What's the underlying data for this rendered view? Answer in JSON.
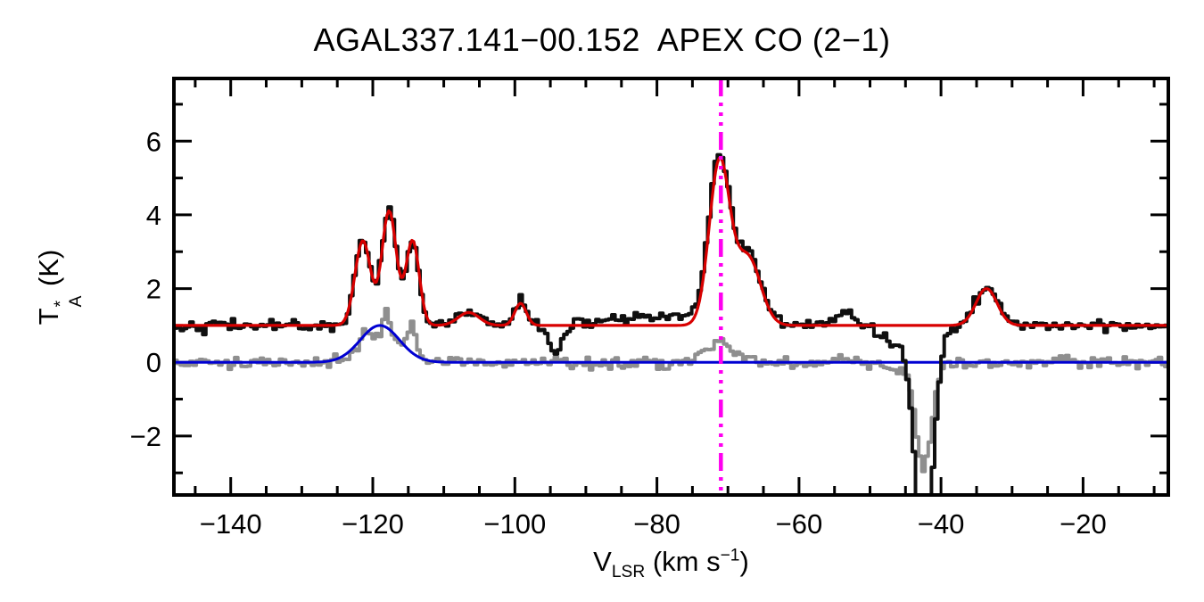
{
  "chart_data": {
    "type": "line",
    "title": "AGAL337.141−00.152  APEX CO (2−1)",
    "xlabel": "V_LSR (km s^-1)",
    "ylabel": "T_A^* (K)",
    "xlabel_parts": {
      "main": "V",
      "sub": "LSR",
      "unit": " (km s",
      "sup": "−1",
      "close": ")"
    },
    "ylabel_parts": {
      "main": "T",
      "sup": "*",
      "sub": "A",
      "unit": " (K)"
    },
    "xlim": [
      -148,
      -8
    ],
    "ylim": [
      -3.6,
      7.7
    ],
    "xticks": [
      -140,
      -120,
      -100,
      -80,
      -60,
      -40,
      -20
    ],
    "yticks": [
      -2,
      0,
      2,
      4,
      6
    ],
    "minor_x_step": 5,
    "minor_y_step": 1,
    "grid": false,
    "legend": "none",
    "frame_color": "#000000",
    "marker_line": {
      "name": "systemic-velocity-line",
      "x": -71.0,
      "color": "#ff00f0",
      "style": "dash-dot",
      "width": 4.5
    },
    "series": [
      {
        "name": "residual-spectrum",
        "kind": "histogram",
        "color": "#8f8f8f",
        "lw": 4,
        "baseline": 0.0,
        "noise": 0.08,
        "seed": 1337,
        "channel": 0.45,
        "components": [
          [
            -121.2,
            0.35,
            1.4
          ],
          [
            -119.0,
            0.75,
            6.0
          ],
          [
            -118.0,
            0.7,
            1.1
          ],
          [
            -114.6,
            0.85,
            1.6
          ],
          [
            -71.0,
            0.5,
            4.5
          ],
          [
            -46.5,
            -0.25,
            4.0
          ],
          [
            -42.4,
            -2.9,
            2.6
          ]
        ]
      },
      {
        "name": "residual-gaussian-fit",
        "kind": "curve",
        "color": "#0000d2",
        "lw": 3,
        "baseline": 0.0,
        "noise": 0,
        "components": [
          [
            -119.0,
            1.0,
            6.5
          ]
        ]
      },
      {
        "name": "co-spectrum",
        "kind": "histogram",
        "color": "#0f0f0f",
        "lw": 4,
        "baseline": 1.0,
        "noise": 0.075,
        "seed": 42,
        "channel": 0.45,
        "components": [
          [
            -121.4,
            2.3,
            2.6
          ],
          [
            -117.7,
            3.1,
            2.4
          ],
          [
            -114.4,
            2.3,
            2.2
          ],
          [
            -106.5,
            0.4,
            3.5
          ],
          [
            -99.2,
            0.65,
            2.0
          ],
          [
            -94.2,
            -0.7,
            2.2
          ],
          [
            -80.0,
            0.25,
            14.0
          ],
          [
            -71.2,
            4.5,
            3.5
          ],
          [
            -67.0,
            1.9,
            4.2
          ],
          [
            -53.5,
            0.35,
            3.0
          ],
          [
            -46.5,
            -0.45,
            4.5
          ],
          [
            -42.4,
            -6.2,
            3.0
          ],
          [
            -33.6,
            1.05,
            3.6
          ]
        ]
      },
      {
        "name": "gaussian-fit",
        "kind": "curve",
        "color": "#d80000",
        "lw": 3.2,
        "baseline": 1.0,
        "noise": 0,
        "components": [
          [
            -121.4,
            2.3,
            2.6
          ],
          [
            -117.7,
            3.1,
            2.4
          ],
          [
            -114.4,
            2.3,
            2.2
          ],
          [
            -106.5,
            0.35,
            3.5
          ],
          [
            -99.2,
            0.6,
            1.9
          ],
          [
            -71.2,
            4.4,
            3.4
          ],
          [
            -67.2,
            1.85,
            4.2
          ],
          [
            -33.6,
            1.0,
            3.5
          ]
        ]
      }
    ]
  }
}
